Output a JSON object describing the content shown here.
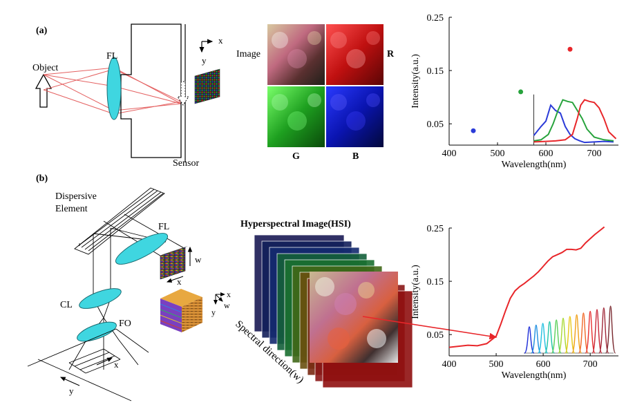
{
  "panel_a": {
    "label": "(a)",
    "object_label": "Object",
    "fl_label": "FL",
    "sensor_label": "Sensor",
    "axis_x": "x",
    "axis_y": "y",
    "image_label": "Image",
    "channel_labels": {
      "r": "R",
      "g": "G",
      "b": "B"
    }
  },
  "panel_b": {
    "label": "(b)",
    "dispersive_line1": "Dispersive",
    "dispersive_line2": "Element",
    "fl_label": "FL",
    "cl_label": "CL",
    "fo_label": "FO",
    "w_label": "w",
    "x_label": "x",
    "y_label": "y",
    "cube_axis_x": "x",
    "cube_axis_w": "w",
    "cube_axis_y": "y",
    "hsi_title": "Hyperspectral Image(HSI)",
    "spectral_direction": "Spectral direction(w)"
  },
  "colors": {
    "red": "#e8262a",
    "green": "#27a33c",
    "blue": "#2b3bd8",
    "lens": "#3fd6e0",
    "ray": "#e46060"
  },
  "chart_data": [
    {
      "type": "scatter",
      "xlabel": "Wavelength(nm)",
      "ylabel": "Intensity(a.u.)",
      "xticks": [
        400,
        500,
        600,
        700
      ],
      "yticks": [
        "0.05",
        "0.15",
        "0.25"
      ],
      "xlim": [
        400,
        750
      ],
      "ylim": [
        0.01,
        0.25
      ],
      "series": [
        {
          "color": "#2b3bd8",
          "x": [
            450
          ],
          "y": [
            0.037
          ]
        },
        {
          "color": "#27a33c",
          "x": [
            548
          ],
          "y": [
            0.11
          ]
        },
        {
          "color": "#e8262a",
          "x": [
            650
          ],
          "y": [
            0.19
          ]
        }
      ],
      "inset": {
        "type": "line",
        "series": [
          {
            "color": "#2b3bd8",
            "x": [
              575,
              590,
              600,
              610,
              620,
              630,
              640,
              650,
              660,
              670,
              680,
              700,
              720,
              740
            ],
            "y": [
              0.028,
              0.045,
              0.055,
              0.085,
              0.075,
              0.07,
              0.045,
              0.03,
              0.022,
              0.018,
              0.015,
              0.016,
              0.017,
              0.016
            ]
          },
          {
            "color": "#27a33c",
            "x": [
              575,
              590,
              605,
              615,
              625,
              635,
              645,
              655,
              665,
              675,
              685,
              700,
              720,
              740
            ],
            "y": [
              0.018,
              0.02,
              0.03,
              0.05,
              0.075,
              0.095,
              0.092,
              0.09,
              0.075,
              0.06,
              0.04,
              0.025,
              0.02,
              0.018
            ]
          },
          {
            "color": "#e8262a",
            "x": [
              575,
              600,
              620,
              640,
              655,
              665,
              672,
              680,
              690,
              700,
              710,
              720,
              730,
              745
            ],
            "y": [
              0.016,
              0.017,
              0.018,
              0.02,
              0.03,
              0.06,
              0.085,
              0.095,
              0.092,
              0.09,
              0.08,
              0.06,
              0.035,
              0.022
            ]
          }
        ]
      }
    },
    {
      "type": "line",
      "xlabel": "Wavelength(nm)",
      "ylabel": "Intensity(a.u.)",
      "xticks": [
        400,
        500,
        600,
        700
      ],
      "yticks": [
        "0.05",
        "0.15",
        "0.25"
      ],
      "xlim": [
        400,
        760
      ],
      "ylim": [
        0.01,
        0.25
      ],
      "series": [
        {
          "color": "#e8262a",
          "x": [
            400,
            420,
            440,
            460,
            480,
            500,
            510,
            520,
            530,
            540,
            550,
            560,
            570,
            580,
            590,
            600,
            610,
            620,
            630,
            640,
            650,
            660,
            670,
            680,
            690,
            700,
            710,
            720,
            730
          ],
          "y": [
            0.026,
            0.028,
            0.03,
            0.029,
            0.033,
            0.047,
            0.07,
            0.095,
            0.118,
            0.132,
            0.14,
            0.146,
            0.153,
            0.16,
            0.168,
            0.178,
            0.188,
            0.196,
            0.2,
            0.204,
            0.21,
            0.21,
            0.209,
            0.212,
            0.222,
            0.23,
            0.238,
            0.245,
            0.252
          ]
        }
      ],
      "inset": {
        "type": "line",
        "peaks": [
          {
            "color": "#1f2fd8"
          },
          {
            "color": "#1f8fe0"
          },
          {
            "color": "#22c0e0"
          },
          {
            "color": "#22c4a8"
          },
          {
            "color": "#5ad05a"
          },
          {
            "color": "#a8d832"
          },
          {
            "color": "#e8c818"
          },
          {
            "color": "#f0a018"
          },
          {
            "color": "#f06828"
          },
          {
            "color": "#e83030"
          },
          {
            "color": "#c82838"
          },
          {
            "color": "#a02838"
          },
          {
            "color": "#7a2a30"
          }
        ]
      }
    }
  ]
}
